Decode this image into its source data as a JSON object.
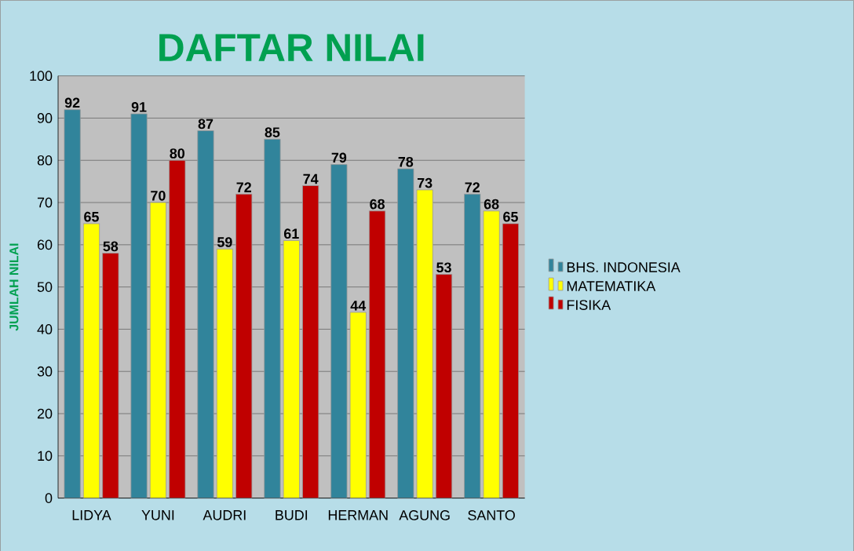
{
  "chart_data": {
    "type": "bar",
    "title": "DAFTAR NILAI",
    "ylabel": "JUMLAH NILAI",
    "categories": [
      "LIDYA",
      "YUNI",
      "AUDRI",
      "BUDI",
      "HERMAN",
      "AGUNG",
      "SANTO"
    ],
    "series": [
      {
        "name": "BHS. INDONESIA",
        "color": "#31849b",
        "values": [
          92,
          91,
          87,
          85,
          79,
          78,
          72
        ]
      },
      {
        "name": "MATEMATIKA",
        "color": "#ffff00",
        "values": [
          65,
          70,
          59,
          61,
          44,
          73,
          68
        ]
      },
      {
        "name": "FISIKA",
        "color": "#c00000",
        "values": [
          58,
          80,
          72,
          74,
          68,
          53,
          65
        ]
      }
    ],
    "ylim": [
      0,
      100
    ],
    "yticks": [
      0,
      10,
      20,
      30,
      40,
      50,
      60,
      70,
      80,
      90,
      100
    ],
    "grid": "y",
    "legend": "right",
    "data_labels": true
  }
}
